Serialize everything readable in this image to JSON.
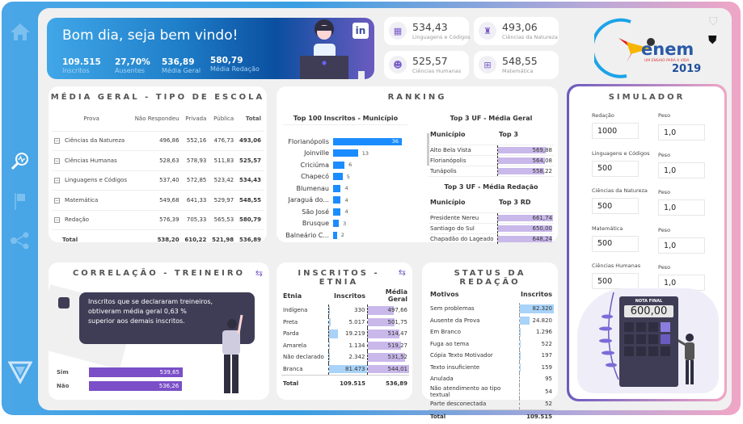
{
  "banner": {
    "greeting": "Bom dia, seja bem vindo!",
    "stats": [
      {
        "value": "109.515",
        "label": "Inscritos"
      },
      {
        "value": "27,70%",
        "label": "Ausentes"
      },
      {
        "value": "536,89",
        "label": "Média Geral"
      },
      {
        "value": "580,79",
        "label": "Média Redação"
      }
    ],
    "linkedin_icon": "linkedin-icon"
  },
  "kpis": [
    {
      "value": "534,43",
      "label": "Linguagens e Códigos",
      "icon": "languages-icon"
    },
    {
      "value": "493,06",
      "label": "Ciências da Natureza",
      "icon": "flask-icon"
    },
    {
      "value": "525,57",
      "label": "Ciências Humanas",
      "icon": "head-gears-icon"
    },
    {
      "value": "548,55",
      "label": "Matemática",
      "icon": "calculator-icon"
    }
  ],
  "logo": {
    "text": "enem",
    "subtitle": "UM ENSAIO PARA A VIDA",
    "year": "2019"
  },
  "media_geral": {
    "title": "MÉDIA GERAL - TIPO DE ESCOLA",
    "columns": [
      "Prova",
      "Não Respondeu",
      "Privada",
      "Pública",
      "Total"
    ],
    "rows": [
      [
        "Ciências da Natureza",
        "496,86",
        "552,16",
        "476,73",
        "493,06"
      ],
      [
        "Ciências Humanas",
        "528,63",
        "578,93",
        "511,83",
        "525,57"
      ],
      [
        "Linguagens e Códigos",
        "537,40",
        "572,85",
        "523,42",
        "534,43"
      ],
      [
        "Matemática",
        "549,68",
        "641,33",
        "529,97",
        "548,55"
      ],
      [
        "Redação",
        "576,39",
        "705,33",
        "565,53",
        "580,79"
      ]
    ],
    "total": [
      "Total",
      "538,20",
      "610,22",
      "521,98",
      "536,89"
    ]
  },
  "ranking": {
    "title": "RANKING",
    "top100": {
      "title": "Top 100 Inscritos - Município",
      "items": [
        {
          "label": "Florianópolis",
          "value": 36
        },
        {
          "label": "Joinville",
          "value": 13
        },
        {
          "label": "Criciúma",
          "value": 6
        },
        {
          "label": "Chapecó",
          "value": 5
        },
        {
          "label": "Blumenau",
          "value": 4
        },
        {
          "label": "Jaraguá do...",
          "value": 4
        },
        {
          "label": "São José",
          "value": 4
        },
        {
          "label": "Brusque",
          "value": 3
        },
        {
          "label": "Balneário C...",
          "value": 2
        }
      ]
    },
    "media_geral": {
      "title": "Top 3 UF - Média Geral",
      "col1": "Município",
      "col2": "Top 3",
      "rows": [
        {
          "label": "Alto Bela Vista",
          "value": "569,88"
        },
        {
          "label": "Florianópolis",
          "value": "564,08"
        },
        {
          "label": "Tunápolis",
          "value": "558,22"
        }
      ]
    },
    "media_redacao": {
      "title": "Top 3 UF - Média Redação",
      "col1": "Município",
      "col2": "Top 3 RD",
      "rows": [
        {
          "label": "Presidente Nereu",
          "value": "661,74"
        },
        {
          "label": "Santiago do Sul",
          "value": "650,00"
        },
        {
          "label": "Chapadão do Lageado",
          "value": "648,24"
        }
      ]
    }
  },
  "correlacao": {
    "title": "CORRELAÇÃO - TREINEIRO",
    "message": "Inscritos que se declararam treineiros, obtiveram média geral 0,63 % superior aos demais inscritos.",
    "bars": [
      {
        "label": "Sim",
        "value": "539,65"
      },
      {
        "label": "Não",
        "value": "536,26"
      }
    ]
  },
  "etnia": {
    "title": "INSCRITOS - ETNIA",
    "columns": [
      "Etnia",
      "Inscritos",
      "Média Geral"
    ],
    "rows": [
      [
        "Indígena",
        "330",
        "497,66"
      ],
      [
        "Preta",
        "5.017",
        "501,75"
      ],
      [
        "Parda",
        "19.219",
        "514,47"
      ],
      [
        "Amarela",
        "1.134",
        "519,27"
      ],
      [
        "Não declarado",
        "2.342",
        "531,52"
      ],
      [
        "Branca",
        "81.473",
        "544,01"
      ]
    ],
    "total": [
      "Total",
      "109.515",
      "536,89"
    ]
  },
  "status": {
    "title": "STATUS DA REDAÇÃO",
    "columns": [
      "Motivos",
      "Inscritos"
    ],
    "rows": [
      [
        "Sem problemas",
        "82.320"
      ],
      [
        "Ausente da Prova",
        "24.820"
      ],
      [
        "Em Branco",
        "1.296"
      ],
      [
        "Fuga ao tema",
        "522"
      ],
      [
        "Cópia Texto Motivador",
        "197"
      ],
      [
        "Texto insuficiente",
        "159"
      ],
      [
        "Anulada",
        "95"
      ],
      [
        "Não atendimento ao tipo textual",
        "54"
      ],
      [
        "Parte desconectada",
        "52"
      ]
    ],
    "total": [
      "Total",
      "109.515"
    ]
  },
  "simulador": {
    "title": "SIMULADOR",
    "weight_label": "Peso",
    "fields": [
      {
        "label": "Redação",
        "value": "1000",
        "weight": "1,0"
      },
      {
        "label": "Linguagens e Códigos",
        "value": "500",
        "weight": "1,0"
      },
      {
        "label": "Ciências da Natureza",
        "value": "500",
        "weight": "1,0"
      },
      {
        "label": "Matemática",
        "value": "500",
        "weight": "1,0"
      },
      {
        "label": "Ciências Humanas",
        "value": "500",
        "weight": "1,0"
      }
    ],
    "result_label": "NOTA FINAL",
    "result": "600,00"
  },
  "colors": {
    "blue": "#1a8cff",
    "purple": "#7a5cc9",
    "lavender": "#c9b8ea",
    "light_blue": "#a9d3f8"
  }
}
